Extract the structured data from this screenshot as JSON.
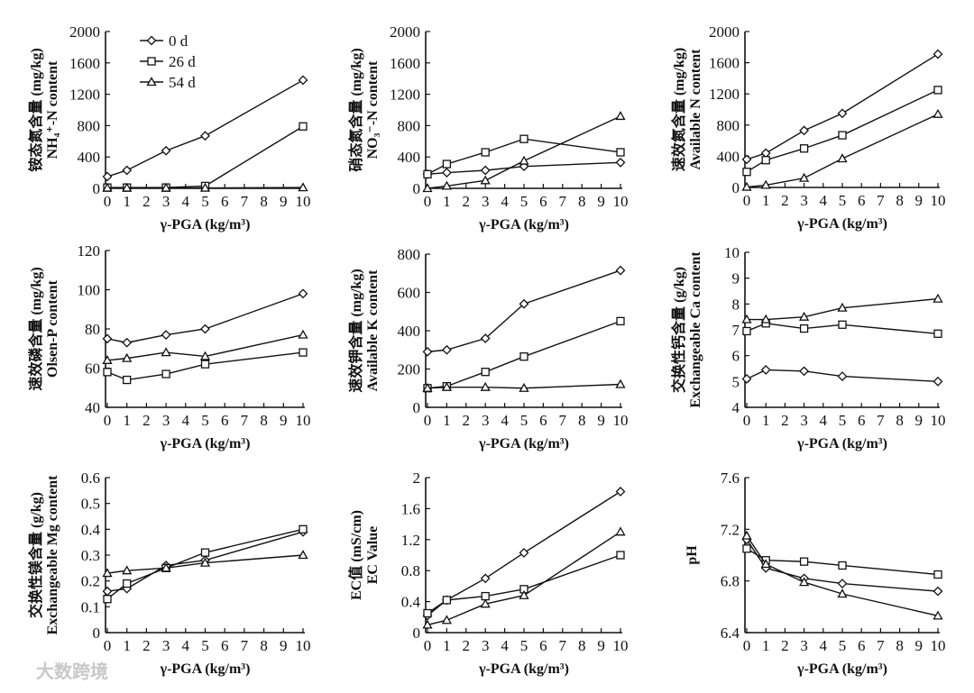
{
  "watermark": "大数跨境",
  "legend": [
    "0 d",
    "26 d",
    "54 d"
  ],
  "chart_data": [
    {
      "type": "line",
      "ylabel_cn": "铵态氮含量 (mg/kg)",
      "ylabel_en": "NH₄⁺-N content",
      "xlabel": "γ-PGA (kg/m³)",
      "x": [
        0,
        1,
        3,
        5,
        10
      ],
      "xticks": [
        0,
        1,
        2,
        3,
        4,
        5,
        6,
        7,
        8,
        9,
        10
      ],
      "ylim": [
        0,
        2000
      ],
      "yticks": [
        0,
        400,
        800,
        1200,
        1600,
        2000
      ],
      "series": [
        {
          "name": "0 d",
          "marker": "diamond",
          "values": [
            150,
            230,
            480,
            670,
            1380
          ]
        },
        {
          "name": "26 d",
          "marker": "square",
          "values": [
            10,
            10,
            10,
            30,
            790
          ]
        },
        {
          "name": "54 d",
          "marker": "triangle",
          "values": [
            5,
            5,
            5,
            5,
            10
          ]
        }
      ]
    },
    {
      "type": "line",
      "ylabel_cn": "硝态氮含量 (mg/kg)",
      "ylabel_en": "NO₃⁻-N content",
      "xlabel": "γ-PGA (kg/m³)",
      "x": [
        0,
        1,
        3,
        5,
        10
      ],
      "xticks": [
        0,
        1,
        2,
        3,
        4,
        5,
        6,
        7,
        8,
        9,
        10
      ],
      "ylim": [
        0,
        2000
      ],
      "yticks": [
        0,
        400,
        800,
        1200,
        1600,
        2000
      ],
      "series": [
        {
          "name": "0 d",
          "marker": "diamond",
          "values": [
            180,
            200,
            230,
            280,
            330
          ]
        },
        {
          "name": "26 d",
          "marker": "square",
          "values": [
            180,
            310,
            460,
            630,
            460
          ]
        },
        {
          "name": "54 d",
          "marker": "triangle",
          "values": [
            0,
            30,
            100,
            350,
            920
          ]
        }
      ]
    },
    {
      "type": "line",
      "ylabel_cn": "速效氮含量 (mg/kg)",
      "ylabel_en": "Available N content",
      "xlabel": "γ-PGA (kg/m³)",
      "x": [
        0,
        1,
        3,
        5,
        10
      ],
      "xticks": [
        0,
        1,
        2,
        3,
        4,
        5,
        6,
        7,
        8,
        9,
        10
      ],
      "ylim": [
        0,
        2000
      ],
      "yticks": [
        0,
        400,
        800,
        1200,
        1600,
        2000
      ],
      "series": [
        {
          "name": "0 d",
          "marker": "diamond",
          "values": [
            360,
            440,
            730,
            950,
            1710
          ]
        },
        {
          "name": "26 d",
          "marker": "square",
          "values": [
            200,
            350,
            500,
            670,
            1250
          ]
        },
        {
          "name": "54 d",
          "marker": "triangle",
          "values": [
            5,
            30,
            120,
            370,
            940
          ]
        }
      ]
    },
    {
      "type": "line",
      "ylabel_cn": "速效磷含量 (mg/kg)",
      "ylabel_en": "Olsen-P content",
      "xlabel": "γ-PGA (kg/m³)",
      "x": [
        0,
        1,
        3,
        5,
        10
      ],
      "xticks": [
        0,
        1,
        2,
        3,
        4,
        5,
        6,
        7,
        8,
        9,
        10
      ],
      "ylim": [
        40,
        120
      ],
      "yticks": [
        40,
        60,
        80,
        100,
        120
      ],
      "series": [
        {
          "name": "0 d",
          "marker": "diamond",
          "values": [
            75,
            73,
            77,
            80,
            98
          ]
        },
        {
          "name": "26 d",
          "marker": "square",
          "values": [
            58,
            54,
            57,
            62,
            68
          ]
        },
        {
          "name": "54 d",
          "marker": "triangle",
          "values": [
            64,
            65,
            68,
            66,
            77
          ]
        }
      ]
    },
    {
      "type": "line",
      "ylabel_cn": "速效钾含量 (mg/kg)",
      "ylabel_en": "Available K content",
      "xlabel": "γ-PGA (kg/m³)",
      "x": [
        0,
        1,
        3,
        5,
        10
      ],
      "xticks": [
        0,
        1,
        2,
        3,
        4,
        5,
        6,
        7,
        8,
        9,
        10
      ],
      "ylim": [
        0,
        800
      ],
      "yticks": [
        0,
        200,
        400,
        600,
        800
      ],
      "series": [
        {
          "name": "0 d",
          "marker": "diamond",
          "values": [
            290,
            300,
            360,
            540,
            715
          ]
        },
        {
          "name": "26 d",
          "marker": "square",
          "values": [
            100,
            110,
            185,
            265,
            450
          ]
        },
        {
          "name": "54 d",
          "marker": "triangle",
          "values": [
            100,
            105,
            105,
            100,
            120
          ]
        }
      ]
    },
    {
      "type": "line",
      "ylabel_cn": "交换性钙含量 (g/kg)",
      "ylabel_en": "Exchangeable Ca content",
      "xlabel": "γ-PGA (kg/m³)",
      "x": [
        0,
        1,
        3,
        5,
        10
      ],
      "xticks": [
        0,
        1,
        2,
        3,
        4,
        5,
        6,
        7,
        8,
        9,
        10
      ],
      "ylim": [
        4,
        10
      ],
      "yticks": [
        4,
        5,
        6,
        7,
        8,
        9,
        10
      ],
      "series": [
        {
          "name": "0 d",
          "marker": "diamond",
          "values": [
            5.1,
            5.45,
            5.4,
            5.2,
            5.0
          ]
        },
        {
          "name": "26 d",
          "marker": "square",
          "values": [
            6.95,
            7.25,
            7.05,
            7.2,
            6.85
          ]
        },
        {
          "name": "54 d",
          "marker": "triangle",
          "values": [
            7.4,
            7.4,
            7.5,
            7.85,
            8.2
          ]
        }
      ]
    },
    {
      "type": "line",
      "ylabel_cn": "交换性镁含量 (g/kg)",
      "ylabel_en": "Exchangeable Mg content",
      "xlabel": "γ-PGA (kg/m³)",
      "x": [
        0,
        1,
        3,
        5,
        10
      ],
      "xticks": [
        0,
        1,
        2,
        3,
        4,
        5,
        6,
        7,
        8,
        9,
        10
      ],
      "ylim": [
        0,
        0.6
      ],
      "yticks": [
        0,
        0.1,
        0.2,
        0.3,
        0.4,
        0.5,
        0.6
      ],
      "series": [
        {
          "name": "0 d",
          "marker": "diamond",
          "values": [
            0.16,
            0.17,
            0.26,
            0.28,
            0.39
          ]
        },
        {
          "name": "26 d",
          "marker": "square",
          "values": [
            0.13,
            0.19,
            0.25,
            0.31,
            0.4
          ]
        },
        {
          "name": "54 d",
          "marker": "triangle",
          "values": [
            0.23,
            0.24,
            0.25,
            0.27,
            0.3
          ]
        }
      ]
    },
    {
      "type": "line",
      "ylabel_cn": "EC值 (mS/cm)",
      "ylabel_en": "EC Value",
      "xlabel": "γ-PGA (kg/m³)",
      "x": [
        0,
        1,
        3,
        5,
        10
      ],
      "xticks": [
        0,
        1,
        2,
        3,
        4,
        5,
        6,
        7,
        8,
        9,
        10
      ],
      "ylim": [
        0,
        2.0
      ],
      "yticks": [
        0,
        0.4,
        0.8,
        1.2,
        1.6,
        2.0
      ],
      "series": [
        {
          "name": "0 d",
          "marker": "diamond",
          "values": [
            0.22,
            0.42,
            0.7,
            1.03,
            1.82
          ]
        },
        {
          "name": "26 d",
          "marker": "square",
          "values": [
            0.25,
            0.42,
            0.47,
            0.56,
            1.0
          ]
        },
        {
          "name": "54 d",
          "marker": "triangle",
          "values": [
            0.1,
            0.16,
            0.37,
            0.48,
            1.3
          ]
        }
      ]
    },
    {
      "type": "line",
      "ylabel_cn": "",
      "ylabel_en": "pH",
      "xlabel": "γ-PGA (kg/m³)",
      "x": [
        0,
        1,
        3,
        5,
        10
      ],
      "xticks": [
        0,
        1,
        2,
        3,
        4,
        5,
        6,
        7,
        8,
        9,
        10
      ],
      "ylim": [
        6.4,
        7.6
      ],
      "yticks": [
        6.4,
        6.8,
        7.2,
        7.6
      ],
      "series": [
        {
          "name": "0 d",
          "marker": "diamond",
          "values": [
            7.12,
            6.9,
            6.82,
            6.78,
            6.72
          ]
        },
        {
          "name": "26 d",
          "marker": "square",
          "values": [
            7.05,
            6.96,
            6.95,
            6.92,
            6.85
          ]
        },
        {
          "name": "54 d",
          "marker": "triangle",
          "values": [
            7.15,
            6.93,
            6.79,
            6.7,
            6.53
          ]
        }
      ]
    }
  ]
}
